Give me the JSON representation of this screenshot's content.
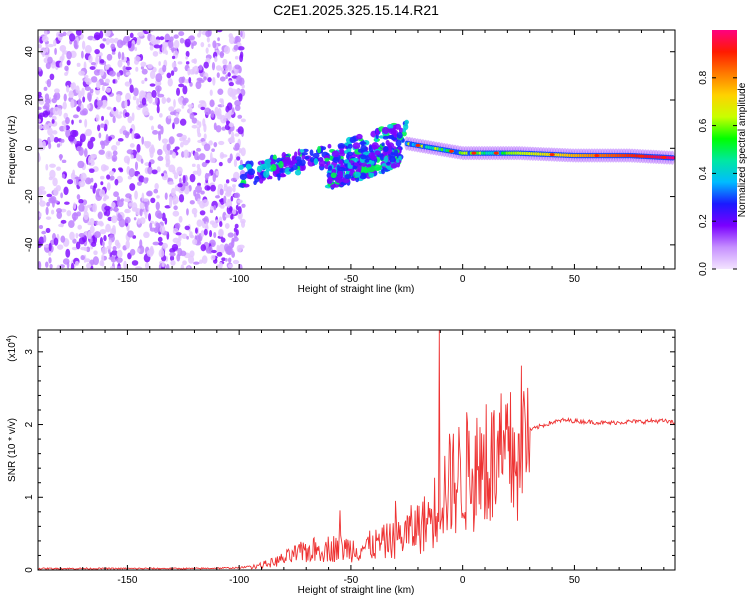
{
  "title": "C2E1.2025.325.15.14.R21",
  "chart_data": [
    {
      "type": "heatmap",
      "title": "C2E1.2025.325.15.14.R21",
      "xlabel": "Height of straight line (km)",
      "ylabel": "Frequency (Hz)",
      "xlim": [
        -190,
        95
      ],
      "ylim": [
        -50,
        49
      ],
      "xticks": [
        -150,
        -100,
        -50,
        0,
        50
      ],
      "yticks": [
        -40,
        -20,
        0,
        20,
        40
      ],
      "xtick_labels": [
        "-150",
        "-100",
        "-50",
        "0",
        "50"
      ],
      "ytick_labels": [
        "-40",
        "-20",
        "0",
        "20",
        "40"
      ],
      "colorbar": {
        "label": "Normalized spectral amplitude",
        "range": [
          0,
          1
        ],
        "ticks": [
          0.0,
          0.2,
          0.4,
          0.6,
          0.8
        ],
        "tick_labels": [
          "0.0",
          "0.2",
          "0.4",
          "0.6",
          "0.8"
        ],
        "colors": [
          "#f3e4ff",
          "#c690ff",
          "#7a00ff",
          "#1a1aff",
          "#00bcff",
          "#00e8a0",
          "#00ff00",
          "#c8ff00",
          "#ffd200",
          "#ff7a00",
          "#ff1a00",
          "#ff0080"
        ]
      },
      "regions": [
        {
          "name": "noise",
          "x_range": [
            -190,
            -98
          ],
          "freq_range": [
            -50,
            49
          ],
          "amplitude": 0.1
        },
        {
          "name": "echo-branch-upper",
          "x": [
            -100,
            -80,
            -60,
            -40,
            -30,
            -25
          ],
          "freq": [
            -12,
            -7,
            -3,
            2,
            6,
            8
          ],
          "amplitude": 0.35
        },
        {
          "name": "echo-branch-lower",
          "x": [
            -60,
            -45,
            -35,
            -28
          ],
          "freq": [
            -12,
            -8,
            -5,
            -2
          ],
          "amplitude": 0.3
        },
        {
          "name": "echo-main",
          "x": [
            -25,
            0,
            25,
            50,
            75,
            95
          ],
          "freq": [
            2,
            -2,
            -2,
            -3,
            -3,
            -4
          ],
          "amplitude": 0.95
        }
      ]
    },
    {
      "type": "line",
      "xlabel": "Height of straight line (km)",
      "ylabel": "SNR (10 * v/v)",
      "y_scale_label": "(x10",
      "y_scale_exp": "4",
      "y_scale_close": ")",
      "xlim": [
        -190,
        95
      ],
      "ylim": [
        0,
        3.3
      ],
      "xticks": [
        -150,
        -100,
        -50,
        0,
        50
      ],
      "yticks": [
        0,
        1,
        2,
        3
      ],
      "xtick_labels": [
        "-150",
        "-100",
        "-50",
        "0",
        "50"
      ],
      "ytick_labels": [
        "0",
        "1",
        "2",
        "3"
      ],
      "series": [
        {
          "name": "SNR",
          "color": "#ee3333",
          "x": [
            -190,
            -150,
            -120,
            -100,
            -95,
            -90,
            -85,
            -80,
            -75,
            -70,
            -65,
            -60,
            -55,
            -50,
            -45,
            -40,
            -35,
            -30,
            -25,
            -20,
            -17,
            -15,
            -12,
            -10,
            -5,
            0,
            5,
            10,
            15,
            20,
            25,
            30,
            35,
            40,
            45,
            50,
            55,
            60,
            65,
            70,
            75,
            80,
            85,
            90,
            95
          ],
          "values": [
            0.02,
            0.02,
            0.02,
            0.03,
            0.05,
            0.08,
            0.12,
            0.18,
            0.25,
            0.3,
            0.33,
            0.35,
            0.36,
            0.35,
            0.36,
            0.4,
            0.45,
            0.5,
            0.6,
            0.7,
            0.75,
            0.85,
            1.0,
            1.2,
            1.4,
            1.55,
            1.62,
            1.68,
            1.72,
            1.78,
            1.85,
            1.92,
            1.98,
            2.03,
            2.06,
            2.05,
            2.04,
            2.03,
            2.02,
            2.03,
            2.04,
            2.04,
            2.05,
            2.05,
            2.02
          ],
          "spikes": [
            {
              "x": -10.5,
              "value": 3.3
            },
            {
              "x": 10.5,
              "value": 2.28
            },
            {
              "x": -55,
              "value": 0.82
            },
            {
              "x": -30,
              "value": 0.95
            }
          ]
        }
      ]
    }
  ]
}
